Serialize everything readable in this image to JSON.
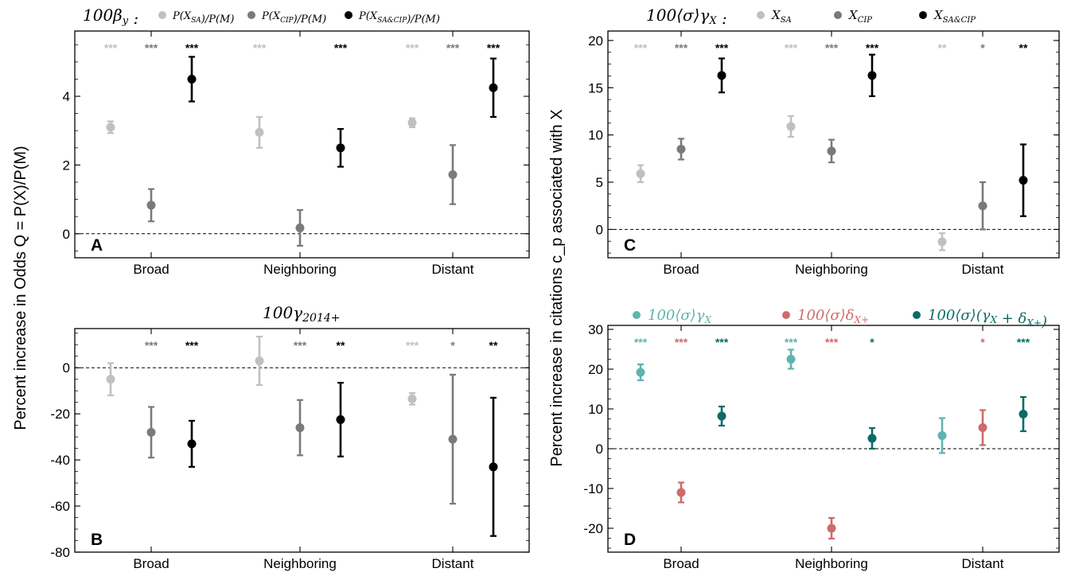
{
  "figure": {
    "ylabel_left": "Percent increase in Odds Q = P(X)/P(M)",
    "ylabel_right": "Percent increase in citations c_p associated with X"
  },
  "chart_data": [
    {
      "panel": "A",
      "type": "scatter",
      "title": "100β_y :",
      "categories": [
        "Broad",
        "Neighboring",
        "Distant"
      ],
      "ylim": [
        -0.7,
        5.9
      ],
      "yticks": [
        0,
        2,
        4
      ],
      "legend_placement": "title-row",
      "series": [
        {
          "name": "P(X_SA)/P(M)",
          "color": "#c0c0c0",
          "values": [
            3.1,
            2.95,
            3.23
          ],
          "err": [
            0.17,
            0.45,
            0.13
          ],
          "sig": [
            "***",
            "***",
            "***"
          ]
        },
        {
          "name": "P(X_CIP)/P(M)",
          "color": "#7a7a7a",
          "values": [
            0.83,
            0.17,
            1.72
          ],
          "err": [
            0.47,
            0.52,
            0.86
          ],
          "sig": [
            "***",
            "",
            "***"
          ]
        },
        {
          "name": "P(X_SA&CIP)/P(M)",
          "color": "#000000",
          "values": [
            4.5,
            2.5,
            4.25
          ],
          "err": [
            0.65,
            0.55,
            0.85
          ],
          "sig": [
            "***",
            "***",
            "***"
          ]
        }
      ]
    },
    {
      "panel": "B",
      "type": "scatter",
      "title": "100γ_2014+",
      "categories": [
        "Broad",
        "Neighboring",
        "Distant"
      ],
      "ylim": [
        -80,
        17
      ],
      "yticks": [
        -80,
        -60,
        -40,
        -20,
        0
      ],
      "series": [
        {
          "name": "",
          "color": "#c0c0c0",
          "values": [
            -5,
            3,
            -13.5
          ],
          "err": [
            7,
            10.5,
            2.5
          ],
          "sig": [
            "",
            "",
            "***"
          ]
        },
        {
          "name": "",
          "color": "#7a7a7a",
          "values": [
            -28,
            -26,
            -31
          ],
          "err": [
            11,
            12,
            28
          ],
          "sig": [
            "***",
            "***",
            "*"
          ]
        },
        {
          "name": "",
          "color": "#000000",
          "values": [
            -33,
            -22.5,
            -43
          ],
          "err": [
            10,
            16,
            30
          ],
          "sig": [
            "***",
            "**",
            "**"
          ]
        }
      ]
    },
    {
      "panel": "C",
      "type": "scatter",
      "title": "100⟨σ⟩γ_X :",
      "categories": [
        "Broad",
        "Neighboring",
        "Distant"
      ],
      "ylim": [
        -3,
        21
      ],
      "yticks": [
        0,
        5,
        10,
        15,
        20
      ],
      "legend_placement": "title-row",
      "series": [
        {
          "name": "X_SA",
          "color": "#c0c0c0",
          "values": [
            5.9,
            10.9,
            -1.3
          ],
          "err": [
            0.9,
            1.1,
            0.9
          ],
          "sig": [
            "***",
            "***",
            "**"
          ]
        },
        {
          "name": "X_CIP",
          "color": "#7a7a7a",
          "values": [
            8.5,
            8.3,
            2.5
          ],
          "err": [
            1.1,
            1.2,
            2.5
          ],
          "sig": [
            "***",
            "***",
            "*"
          ]
        },
        {
          "name": "X_SA&CIP",
          "color": "#000000",
          "values": [
            16.3,
            16.3,
            5.2
          ],
          "err": [
            1.8,
            2.2,
            3.8
          ],
          "sig": [
            "***",
            "***",
            "**"
          ]
        }
      ]
    },
    {
      "panel": "D",
      "type": "scatter",
      "title": "",
      "categories": [
        "Broad",
        "Neighboring",
        "Distant"
      ],
      "ylim": [
        -26,
        31
      ],
      "yticks": [
        -20,
        -10,
        0,
        10,
        20,
        30
      ],
      "legend_placement": "top",
      "series": [
        {
          "name": "100⟨σ⟩γ_X",
          "color": "#5fb3b0",
          "values": [
            19.2,
            22.5,
            3.3
          ],
          "err": [
            2.0,
            2.4,
            4.4
          ],
          "sig": [
            "***",
            "***",
            ""
          ]
        },
        {
          "name": "100⟨σ⟩δ_X+",
          "color": "#cd6b6b",
          "values": [
            -11,
            -20,
            5.3
          ],
          "err": [
            2.5,
            2.6,
            4.4
          ],
          "sig": [
            "***",
            "***",
            "*"
          ]
        },
        {
          "name": "100⟨σ⟩(γ_X + δ_X+)",
          "color": "#0b6b66",
          "values": [
            8.2,
            2.6,
            8.7
          ],
          "err": [
            2.4,
            2.6,
            4.3
          ],
          "sig": [
            "***",
            "*",
            "***"
          ]
        }
      ]
    }
  ]
}
